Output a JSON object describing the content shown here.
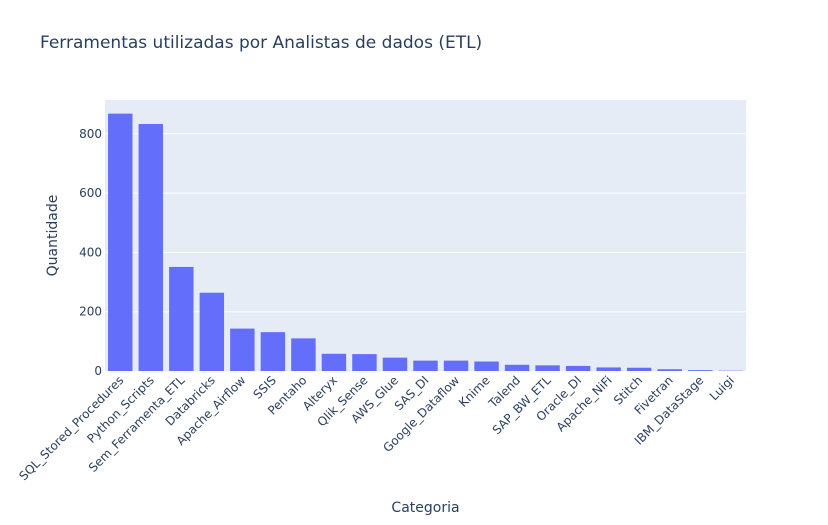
{
  "chart_data": {
    "type": "bar",
    "title": "Ferramentas utilizadas por Analistas de dados (ETL)",
    "xlabel": "Categoria",
    "ylabel": "Quantidade",
    "categories": [
      "SQL_Stored_Procedures",
      "Python_Scripts",
      "Sem_Ferramenta_ETL",
      "Databricks",
      "Apache_Airflow",
      "SSIS",
      "Pentaho",
      "Alteryx",
      "Qlik_Sense",
      "AWS_Glue",
      "SAS_DI",
      "Google_Dataflow",
      "Knime",
      "Talend",
      "SAP_BW_ETL",
      "Oracle_DI",
      "Apache_NiFi",
      "Stitch",
      "Fivetran",
      "IBM_DataStage",
      "Luigi"
    ],
    "values": [
      868,
      833,
      351,
      264,
      143,
      131,
      110,
      58,
      57,
      45,
      35,
      35,
      32,
      21,
      19,
      17,
      12,
      11,
      6,
      3,
      1
    ],
    "ylim": [
      0,
      914
    ],
    "yticks": [
      0,
      200,
      400,
      600,
      800
    ],
    "grid": true,
    "legend": "none",
    "colors": {
      "bar": "#636efa",
      "plot_bg": "#e5ecf6",
      "grid": "#ffffff",
      "text": "#2a3f5f"
    }
  }
}
